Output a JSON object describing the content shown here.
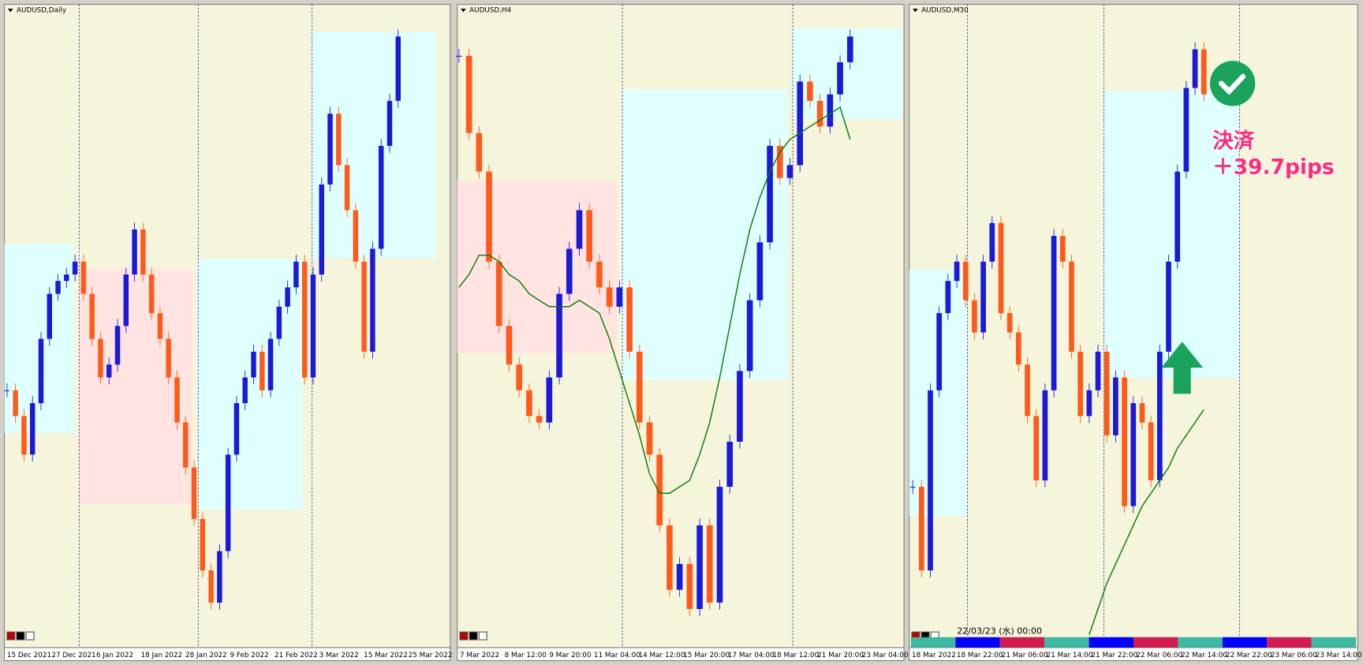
{
  "chart_data": [
    {
      "type": "candlestick",
      "title": "AUDUSD,Daily",
      "x_labels": [
        "15 Dec 2021",
        "27 Dec 2021",
        "6 Jan 2022",
        "18 Jan 2022",
        "28 Jan 2022",
        "9 Feb 2022",
        "21 Feb 2022",
        "3 Mar 2022",
        "15 Mar 2022",
        "25 Mar 2022"
      ],
      "close": [
        40,
        36,
        30,
        38,
        48,
        55,
        57,
        58,
        60,
        55,
        48,
        42,
        44,
        50,
        58,
        65,
        58,
        52,
        48,
        42,
        35,
        28,
        20,
        12,
        7,
        15,
        30,
        38,
        42,
        46,
        40,
        48,
        53,
        56,
        60,
        42,
        58,
        72,
        83,
        75,
        68,
        60,
        46,
        62,
        78,
        85,
        95
      ]
    },
    {
      "type": "candlestick",
      "title": "AUDUSD,H4",
      "x_labels": [
        "7 Mar 2022",
        "8 Mar 12:00",
        "9 Mar 20:00",
        "11 Mar 04:00",
        "14 Mar 12:00",
        "15 Mar 20:00",
        "17 Mar 04:00",
        "18 Mar 12:00",
        "21 Mar 20:00",
        "23 Mar 04:00"
      ],
      "close": [
        92,
        80,
        74,
        60,
        50,
        44,
        40,
        36,
        35,
        42,
        55,
        62,
        68,
        60,
        56,
        53,
        56,
        46,
        35,
        30,
        19,
        9,
        13,
        6,
        19,
        7,
        25,
        32,
        43,
        54,
        63,
        78,
        73,
        75,
        88,
        85,
        81,
        86,
        91,
        95
      ],
      "ma": [
        56,
        58,
        61,
        61,
        60,
        58,
        57,
        55,
        54,
        53,
        53,
        53,
        54,
        53,
        52,
        48,
        43,
        38,
        33,
        27,
        24,
        24,
        25,
        26,
        30,
        35,
        42,
        50,
        58,
        65,
        70,
        74,
        77,
        79,
        80,
        81,
        82,
        83,
        84,
        79
      ]
    },
    {
      "type": "candlestick",
      "title": "AUDUSD,M30",
      "x_labels": [
        "18 Mar 2022",
        "18 Mar 22:00",
        "21 Mar 06:00",
        "21 Mar 14:00",
        "21 Mar 22:00",
        "22 Mar 06:00",
        "22 Mar 14:00",
        "22 Mar 22:00",
        "23 Mar 06:00",
        "23 Mar 14:00"
      ],
      "close": [
        25,
        12,
        40,
        52,
        57,
        60,
        54,
        49,
        60,
        66,
        52,
        49,
        44,
        36,
        26,
        40,
        64,
        60,
        46,
        36,
        40,
        46,
        33,
        42,
        22,
        38,
        35,
        26,
        46,
        60,
        74,
        87,
        93,
        86
      ],
      "ma": [
        null,
        null,
        null,
        null,
        null,
        null,
        null,
        null,
        null,
        null,
        null,
        null,
        null,
        null,
        null,
        null,
        null,
        null,
        null,
        null,
        2,
        6,
        10,
        13,
        16,
        19,
        22,
        24,
        26,
        28,
        31,
        33,
        35,
        37
      ],
      "timestamp": "22/03/23 (水) 00:00",
      "annotation": {
        "line1": "決済",
        "line2": "＋39.7pips"
      }
    }
  ]
}
